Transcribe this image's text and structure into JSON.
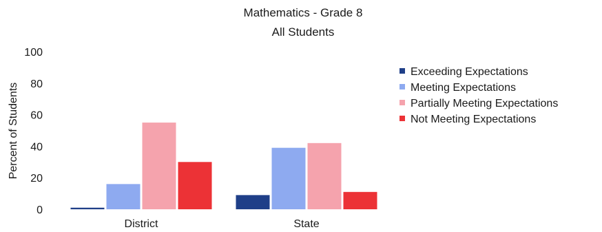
{
  "chart_data": {
    "type": "bar",
    "title": "Mathematics - Grade 8",
    "subtitle": "All Students",
    "ylabel": "Percent of Students",
    "xlabel": "",
    "ylim": [
      0,
      100
    ],
    "yticks": [
      0,
      20,
      40,
      60,
      80,
      100
    ],
    "categories": [
      "District",
      "State"
    ],
    "series": [
      {
        "name": "Exceeding Expectations",
        "color": "#1f3f88",
        "values": [
          1,
          9
        ]
      },
      {
        "name": "Meeting Expectations",
        "color": "#8eaaf0",
        "values": [
          16,
          39
        ]
      },
      {
        "name": "Partially Meeting Expectations",
        "color": "#f5a3ad",
        "values": [
          55,
          42
        ]
      },
      {
        "name": "Not Meeting Expectations",
        "color": "#ec3236",
        "values": [
          30,
          11
        ]
      }
    ],
    "grid": false,
    "legend_position": "right"
  }
}
